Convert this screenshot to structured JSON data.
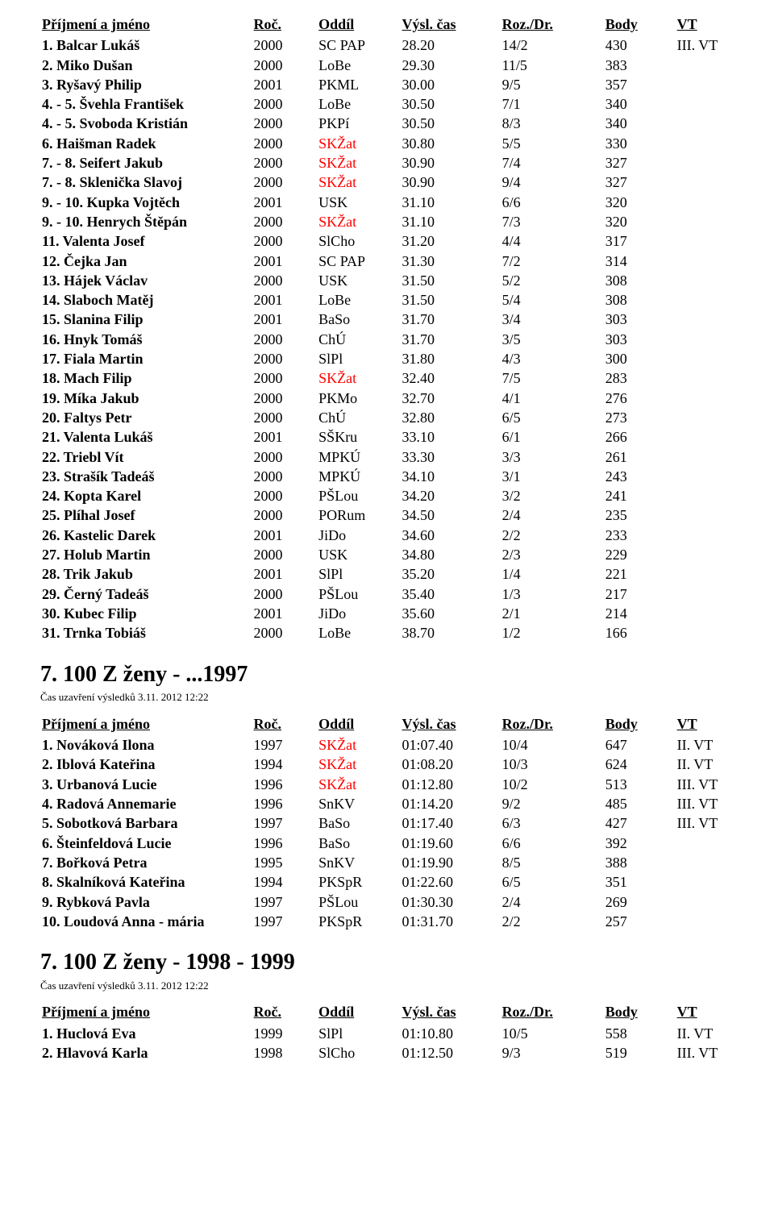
{
  "tables": [
    {
      "headers": [
        "Příjmení a jméno",
        "Roč.",
        "Oddíl",
        "Výsl. čas",
        "Roz./Dr.",
        "Body",
        "VT"
      ],
      "rows": [
        {
          "name": "1. Balcar Lukáš",
          "roc": "2000",
          "oddil": "SC PAP",
          "cas": "28.20",
          "roz": "14/2",
          "body": "430",
          "vt": "III. VT",
          "hl": false
        },
        {
          "name": "2. Miko Dušan",
          "roc": "2000",
          "oddil": "LoBe",
          "cas": "29.30",
          "roz": "11/5",
          "body": "383",
          "vt": "",
          "hl": false
        },
        {
          "name": "3. Ryšavý Philip",
          "roc": "2001",
          "oddil": "PKML",
          "cas": "30.00",
          "roz": "9/5",
          "body": "357",
          "vt": "",
          "hl": false
        },
        {
          "name": "4. - 5. Švehla František",
          "roc": "2000",
          "oddil": "LoBe",
          "cas": "30.50",
          "roz": "7/1",
          "body": "340",
          "vt": "",
          "hl": false
        },
        {
          "name": "4. - 5. Svoboda Kristián",
          "roc": "2000",
          "oddil": "PKPí",
          "cas": "30.50",
          "roz": "8/3",
          "body": "340",
          "vt": "",
          "hl": false
        },
        {
          "name": "6. Haišman Radek",
          "roc": "2000",
          "oddil": "SKŽat",
          "cas": "30.80",
          "roz": "5/5",
          "body": "330",
          "vt": "",
          "hl": true
        },
        {
          "name": "7. - 8. Seifert Jakub",
          "roc": "2000",
          "oddil": "SKŽat",
          "cas": "30.90",
          "roz": "7/4",
          "body": "327",
          "vt": "",
          "hl": true
        },
        {
          "name": "7. - 8. Sklenička Slavoj",
          "roc": "2000",
          "oddil": "SKŽat",
          "cas": "30.90",
          "roz": "9/4",
          "body": "327",
          "vt": "",
          "hl": true
        },
        {
          "name": "9. - 10. Kupka Vojtěch",
          "roc": "2001",
          "oddil": "USK",
          "cas": "31.10",
          "roz": "6/6",
          "body": "320",
          "vt": "",
          "hl": false
        },
        {
          "name": "9. - 10. Henrych Štěpán",
          "roc": "2000",
          "oddil": "SKŽat",
          "cas": "31.10",
          "roz": "7/3",
          "body": "320",
          "vt": "",
          "hl": true
        },
        {
          "name": "11. Valenta Josef",
          "roc": "2000",
          "oddil": "SlCho",
          "cas": "31.20",
          "roz": "4/4",
          "body": "317",
          "vt": "",
          "hl": false
        },
        {
          "name": "12. Čejka Jan",
          "roc": "2001",
          "oddil": "SC PAP",
          "cas": "31.30",
          "roz": "7/2",
          "body": "314",
          "vt": "",
          "hl": false
        },
        {
          "name": "13. Hájek Václav",
          "roc": "2000",
          "oddil": "USK",
          "cas": "31.50",
          "roz": "5/2",
          "body": "308",
          "vt": "",
          "hl": false
        },
        {
          "name": "14. Slaboch Matěj",
          "roc": "2001",
          "oddil": "LoBe",
          "cas": "31.50",
          "roz": "5/4",
          "body": "308",
          "vt": "",
          "hl": false
        },
        {
          "name": "15. Slanina Filip",
          "roc": "2001",
          "oddil": "BaSo",
          "cas": "31.70",
          "roz": "3/4",
          "body": "303",
          "vt": "",
          "hl": false
        },
        {
          "name": "16. Hnyk Tomáš",
          "roc": "2000",
          "oddil": "ChÚ",
          "cas": "31.70",
          "roz": "3/5",
          "body": "303",
          "vt": "",
          "hl": false
        },
        {
          "name": "17. Fiala Martin",
          "roc": "2000",
          "oddil": "SlPl",
          "cas": "31.80",
          "roz": "4/3",
          "body": "300",
          "vt": "",
          "hl": false
        },
        {
          "name": "18. Mach Filip",
          "roc": "2000",
          "oddil": "SKŽat",
          "cas": "32.40",
          "roz": "7/5",
          "body": "283",
          "vt": "",
          "hl": true
        },
        {
          "name": "19. Míka Jakub",
          "roc": "2000",
          "oddil": "PKMo",
          "cas": "32.70",
          "roz": "4/1",
          "body": "276",
          "vt": "",
          "hl": false
        },
        {
          "name": "20. Faltys Petr",
          "roc": "2000",
          "oddil": "ChÚ",
          "cas": "32.80",
          "roz": "6/5",
          "body": "273",
          "vt": "",
          "hl": false
        },
        {
          "name": "21. Valenta Lukáš",
          "roc": "2001",
          "oddil": "SŠKru",
          "cas": "33.10",
          "roz": "6/1",
          "body": "266",
          "vt": "",
          "hl": false
        },
        {
          "name": "22. Triebl Vít",
          "roc": "2000",
          "oddil": "MPKÚ",
          "cas": "33.30",
          "roz": "3/3",
          "body": "261",
          "vt": "",
          "hl": false
        },
        {
          "name": "23. Strašík Tadeáš",
          "roc": "2000",
          "oddil": "MPKÚ",
          "cas": "34.10",
          "roz": "3/1",
          "body": "243",
          "vt": "",
          "hl": false
        },
        {
          "name": "24. Kopta Karel",
          "roc": "2000",
          "oddil": "PŠLou",
          "cas": "34.20",
          "roz": "3/2",
          "body": "241",
          "vt": "",
          "hl": false
        },
        {
          "name": "25. Plíhal Josef",
          "roc": "2000",
          "oddil": "PORum",
          "cas": "34.50",
          "roz": "2/4",
          "body": "235",
          "vt": "",
          "hl": false
        },
        {
          "name": "26. Kastelic Darek",
          "roc": "2001",
          "oddil": "JiDo",
          "cas": "34.60",
          "roz": "2/2",
          "body": "233",
          "vt": "",
          "hl": false
        },
        {
          "name": "27. Holub Martin",
          "roc": "2000",
          "oddil": "USK",
          "cas": "34.80",
          "roz": "2/3",
          "body": "229",
          "vt": "",
          "hl": false
        },
        {
          "name": "28. Trik Jakub",
          "roc": "2001",
          "oddil": "SlPl",
          "cas": "35.20",
          "roz": "1/4",
          "body": "221",
          "vt": "",
          "hl": false
        },
        {
          "name": "29. Černý Tadeáš",
          "roc": "2000",
          "oddil": "PŠLou",
          "cas": "35.40",
          "roz": "1/3",
          "body": "217",
          "vt": "",
          "hl": false
        },
        {
          "name": "30. Kubec Filip",
          "roc": "2001",
          "oddil": "JiDo",
          "cas": "35.60",
          "roz": "2/1",
          "body": "214",
          "vt": "",
          "hl": false
        },
        {
          "name": "31. Trnka Tobiáš",
          "roc": "2000",
          "oddil": "LoBe",
          "cas": "38.70",
          "roz": "1/2",
          "body": "166",
          "vt": "",
          "hl": false
        }
      ]
    },
    {
      "title": "7. 100 Z ženy - ...1997",
      "subnote": "Čas uzavření výsledků 3.11. 2012 12:22",
      "headers": [
        "Příjmení a jméno",
        "Roč.",
        "Oddíl",
        "Výsl. čas",
        "Roz./Dr.",
        "Body",
        "VT"
      ],
      "rows": [
        {
          "name": "1. Nováková Ilona",
          "roc": "1997",
          "oddil": "SKŽat",
          "cas": "01:07.40",
          "roz": "10/4",
          "body": "647",
          "vt": "II. VT",
          "hl": true
        },
        {
          "name": "2. Iblová Kateřina",
          "roc": "1994",
          "oddil": "SKŽat",
          "cas": "01:08.20",
          "roz": "10/3",
          "body": "624",
          "vt": "II. VT",
          "hl": true
        },
        {
          "name": "3. Urbanová Lucie",
          "roc": "1996",
          "oddil": "SKŽat",
          "cas": "01:12.80",
          "roz": "10/2",
          "body": "513",
          "vt": "III. VT",
          "hl": true
        },
        {
          "name": "4. Radová Annemarie",
          "roc": "1996",
          "oddil": "SnKV",
          "cas": "01:14.20",
          "roz": "9/2",
          "body": "485",
          "vt": "III. VT",
          "hl": false
        },
        {
          "name": "5. Sobotková Barbara",
          "roc": "1997",
          "oddil": "BaSo",
          "cas": "01:17.40",
          "roz": "6/3",
          "body": "427",
          "vt": "III. VT",
          "hl": false
        },
        {
          "name": "6. Šteinfeldová Lucie",
          "roc": "1996",
          "oddil": "BaSo",
          "cas": "01:19.60",
          "roz": "6/6",
          "body": "392",
          "vt": "",
          "hl": false
        },
        {
          "name": "7. Bořková Petra",
          "roc": "1995",
          "oddil": "SnKV",
          "cas": "01:19.90",
          "roz": "8/5",
          "body": "388",
          "vt": "",
          "hl": false
        },
        {
          "name": "8. Skalníková Kateřina",
          "roc": "1994",
          "oddil": "PKSpR",
          "cas": "01:22.60",
          "roz": "6/5",
          "body": "351",
          "vt": "",
          "hl": false
        },
        {
          "name": "9. Rybková Pavla",
          "roc": "1997",
          "oddil": "PŠLou",
          "cas": "01:30.30",
          "roz": "2/4",
          "body": "269",
          "vt": "",
          "hl": false
        },
        {
          "name": "10. Loudová Anna - mária",
          "roc": "1997",
          "oddil": "PKSpR",
          "cas": "01:31.70",
          "roz": "2/2",
          "body": "257",
          "vt": "",
          "hl": false
        }
      ]
    },
    {
      "title": "7. 100 Z ženy - 1998 - 1999",
      "subnote": "Čas uzavření výsledků 3.11. 2012 12:22",
      "headers": [
        "Příjmení a jméno",
        "Roč.",
        "Oddíl",
        "Výsl. čas",
        "Roz./Dr.",
        "Body",
        "VT"
      ],
      "rows": [
        {
          "name": "1. Huclová Eva",
          "roc": "1999",
          "oddil": "SlPl",
          "cas": "01:10.80",
          "roz": "10/5",
          "body": "558",
          "vt": "II. VT",
          "hl": false
        },
        {
          "name": "2. Hlavová Karla",
          "roc": "1998",
          "oddil": "SlCho",
          "cas": "01:12.50",
          "roz": "9/3",
          "body": "519",
          "vt": "III. VT",
          "hl": false
        }
      ]
    }
  ]
}
